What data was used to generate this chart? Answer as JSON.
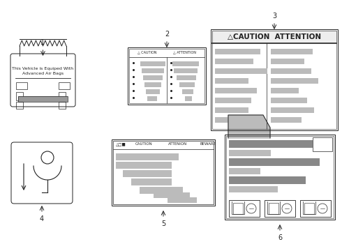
{
  "bg_color": "#ffffff",
  "line_color": "#222222",
  "gray_dark": "#888888",
  "gray_light": "#bbbbbb",
  "gray_med": "#999999",
  "box1_text": "This Vehicle is Equiped With\nAdvanced Air Bags",
  "caution3_header": "△CAUTION  ATTENTION"
}
